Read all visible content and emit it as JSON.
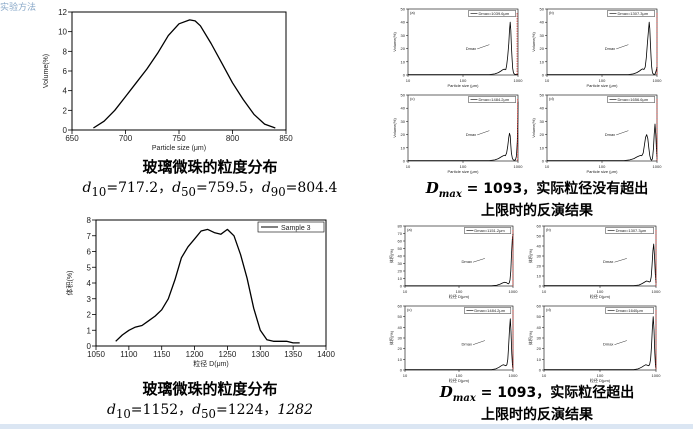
{
  "page": {
    "corner_text": "实验方法",
    "left_top_caption": {
      "title": "玻璃微珠的粒度分布",
      "d10": "717.2",
      "d50": "759.5",
      "d90": "804.4"
    },
    "left_bottom_caption": {
      "title": "玻璃微珠的粒度分布",
      "d10": "1152",
      "d50": "1224",
      "d90_value": "1282"
    },
    "right_top_caption": {
      "dmax_label": "D",
      "dmax_sub": "max",
      "eq": "= 1093，实际粒径没有超出",
      "line2": "上限时的反演结果"
    },
    "right_bottom_caption": {
      "dmax_label": "D",
      "dmax_sub": "max",
      "eq": "= 1093，实际粒径超出",
      "line2": "上限时的反演结果"
    },
    "colors": {
      "curve": "#000000",
      "red": "#e8302a",
      "bar": "#dbe6f3"
    }
  },
  "chart_data": [
    {
      "type": "line",
      "id": "chart1",
      "xlabel": "Particle size (μm)",
      "ylabel": "Volume(%)",
      "xlim": [
        650,
        850
      ],
      "ylim": [
        0,
        12
      ],
      "xticks": [
        650,
        700,
        750,
        800,
        850
      ],
      "yticks": [
        0,
        2,
        4,
        6,
        8,
        10,
        12
      ],
      "series": [
        {
          "x": [
            670,
            680,
            690,
            700,
            710,
            720,
            730,
            740,
            750,
            760,
            765,
            770,
            780,
            790,
            800,
            810,
            820,
            830,
            840
          ],
          "values": [
            0.2,
            0.9,
            2.0,
            3.4,
            4.8,
            6.2,
            7.8,
            9.6,
            10.8,
            11.2,
            11.1,
            10.6,
            8.8,
            6.8,
            4.8,
            3.1,
            1.6,
            0.6,
            0.2
          ]
        }
      ]
    },
    {
      "type": "line",
      "id": "chart2",
      "xlabel": "粒径 D(μm)",
      "ylabel": "体积(%)",
      "xlim": [
        1050,
        1400
      ],
      "ylim": [
        0,
        8
      ],
      "xticks": [
        1050,
        1100,
        1150,
        1200,
        1250,
        1300,
        1350,
        1400
      ],
      "yticks": [
        0,
        1,
        2,
        3,
        4,
        5,
        6,
        7,
        8
      ],
      "legend": "Sample 3",
      "series": [
        {
          "name": "Sample 3",
          "x": [
            1080,
            1090,
            1100,
            1110,
            1120,
            1130,
            1140,
            1150,
            1160,
            1170,
            1180,
            1190,
            1200,
            1210,
            1220,
            1230,
            1240,
            1250,
            1260,
            1270,
            1280,
            1290,
            1300,
            1310,
            1320,
            1330,
            1340,
            1350,
            1360
          ],
          "values": [
            0.3,
            0.7,
            1.0,
            1.2,
            1.3,
            1.6,
            1.9,
            2.3,
            3.0,
            4.2,
            5.6,
            6.3,
            6.8,
            7.3,
            7.4,
            7.2,
            7.1,
            7.4,
            7.0,
            5.8,
            4.3,
            2.4,
            1.0,
            0.4,
            0.3,
            0.3,
            0.3,
            0.2,
            0.2
          ]
        }
      ]
    },
    {
      "type": "line",
      "id": "g1",
      "panel": "(a)",
      "legend": "Dmax=1039.6μm",
      "xlabel": "Particle size (μm)",
      "ylabel": "Volume(%)",
      "xscale": "log",
      "xlim": [
        10,
        1000
      ],
      "ylim": [
        0,
        50
      ],
      "xticks": [
        10,
        100,
        1000
      ],
      "yticks": [
        0,
        10,
        20,
        30,
        40,
        50
      ],
      "annotation": "Dmax",
      "series": [
        {
          "x": [
            10,
            300,
            380,
            440,
            490,
            530,
            560,
            580,
            600,
            620,
            650,
            680,
            700,
            720,
            740,
            760,
            780,
            800,
            830,
            870,
            1000
          ],
          "values": [
            0.3,
            0.3,
            0.8,
            1.8,
            3.0,
            4.0,
            4.5,
            4.0,
            4.2,
            7,
            14,
            24,
            34,
            40,
            34,
            22,
            12,
            5,
            1.5,
            0.5,
            0.3
          ]
        }
      ],
      "red_line_x": 960
    },
    {
      "type": "line",
      "id": "g2",
      "panel": "(b)",
      "legend": "Dmax=1307.3μm",
      "xlabel": "Particle size (μm)",
      "ylabel": "Volume(%)",
      "xscale": "log",
      "xlim": [
        10,
        1000
      ],
      "ylim": [
        0,
        50
      ],
      "xticks": [
        10,
        100,
        1000
      ],
      "yticks": [
        0,
        10,
        20,
        30,
        40,
        50
      ],
      "annotation": "Dmax",
      "series": [
        {
          "x": [
            10,
            300,
            370,
            430,
            480,
            520,
            550,
            580,
            610,
            640,
            670,
            700,
            720,
            740,
            760,
            780,
            800,
            830,
            870,
            920,
            960,
            1000
          ],
          "values": [
            0.3,
            0.3,
            0.8,
            1.8,
            3.0,
            4.2,
            4.6,
            4.2,
            6,
            13,
            24,
            34,
            40,
            35,
            24,
            13,
            6,
            1.5,
            0.5,
            0.5,
            2.8,
            6
          ]
        }
      ],
      "red_line_x": 1000
    },
    {
      "type": "line",
      "id": "g3",
      "panel": "(c)",
      "legend": "Dmax=1484.2μm",
      "xlabel": "Particle size (μm)",
      "ylabel": "Volume(%)",
      "xscale": "log",
      "xlim": [
        10,
        1000
      ],
      "ylim": [
        0,
        50
      ],
      "xticks": [
        10,
        100,
        1000
      ],
      "yticks": [
        0,
        10,
        20,
        30,
        40,
        50
      ],
      "annotation": "Dmax",
      "series": [
        {
          "x": [
            10,
            300,
            380,
            440,
            490,
            530,
            560,
            590,
            620,
            650,
            680,
            700,
            720,
            740,
            760,
            790,
            820,
            860,
            900,
            940,
            970,
            990,
            1000
          ],
          "values": [
            0.3,
            0.3,
            0.8,
            1.8,
            3.0,
            3.8,
            4.3,
            4.0,
            6,
            11,
            18,
            21,
            19,
            12,
            6,
            2,
            0.8,
            0.5,
            0.8,
            4,
            15,
            32,
            45
          ]
        }
      ],
      "red_line_x": 985
    },
    {
      "type": "line",
      "id": "g4",
      "panel": "(d)",
      "legend": "Dmax=1656.6μm",
      "xlabel": "Particle size (μm)",
      "ylabel": "Volume(%)",
      "xscale": "log",
      "xlim": [
        10,
        1000
      ],
      "ylim": [
        0,
        50
      ],
      "xticks": [
        10,
        100,
        1000
      ],
      "yticks": [
        0,
        10,
        20,
        30,
        40,
        50
      ],
      "annotation": "Dmax",
      "series": [
        {
          "x": [
            10,
            250,
            320,
            380,
            430,
            470,
            500,
            530,
            560,
            590,
            620,
            650,
            680,
            710,
            740,
            770,
            800,
            830,
            860,
            890,
            920,
            950,
            980,
            1000
          ],
          "values": [
            0.3,
            0.3,
            0.8,
            1.8,
            3.0,
            3.8,
            4.2,
            4.0,
            6,
            12,
            18,
            20,
            17,
            10,
            4,
            1.2,
            0.6,
            2,
            9,
            20,
            28,
            20,
            8,
            2
          ]
        }
      ],
      "red_line_x": 1000
    },
    {
      "type": "line",
      "id": "g5",
      "panel": "(a)",
      "legend": "Dmax=1151.2μm",
      "xlabel": "粒径 D(μm)",
      "ylabel": "体积(%)",
      "xscale": "log",
      "xlim": [
        10,
        1000
      ],
      "ylim": [
        0,
        80
      ],
      "xticks": [
        10,
        100,
        1000
      ],
      "yticks": [
        0,
        10,
        20,
        30,
        40,
        50,
        60,
        70,
        80
      ],
      "annotation": "Dmax",
      "series": [
        {
          "x": [
            10,
            400,
            500,
            580,
            640,
            700,
            750,
            790,
            820,
            850,
            880,
            910,
            940,
            970,
            1000
          ],
          "values": [
            0.3,
            0.3,
            1.0,
            2.5,
            4.0,
            5.0,
            4.5,
            3.5,
            3.0,
            4.0,
            8,
            20,
            42,
            62,
            70
          ]
        }
      ],
      "red_line_x": 995
    },
    {
      "type": "line",
      "id": "g6",
      "panel": "(b)",
      "legend": "Dmax=1307.3μm",
      "xlabel": "粒径 D(μm)",
      "ylabel": "体积(%)",
      "xscale": "log",
      "xlim": [
        10,
        1000
      ],
      "ylim": [
        0,
        60
      ],
      "xticks": [
        10,
        100,
        1000
      ],
      "yticks": [
        0,
        10,
        20,
        30,
        40,
        50,
        60
      ],
      "annotation": "Dmax",
      "series": [
        {
          "x": [
            10,
            400,
            500,
            570,
            630,
            680,
            720,
            760,
            790,
            820,
            850,
            880,
            910,
            940,
            970,
            1000
          ],
          "values": [
            0.3,
            0.3,
            1.0,
            2.5,
            4.0,
            5.0,
            4.6,
            4.0,
            4.5,
            9,
            20,
            35,
            42,
            30,
            12,
            3
          ]
        }
      ],
      "red_line_x": 1000
    },
    {
      "type": "line",
      "id": "g7",
      "panel": "(c)",
      "legend": "Dmax=1484.2μm",
      "xlabel": "粒径 D(μm)",
      "ylabel": "体积(%)",
      "xscale": "log",
      "xlim": [
        10,
        1000
      ],
      "ylim": [
        0,
        60
      ],
      "xticks": [
        10,
        100,
        1000
      ],
      "yticks": [
        0,
        10,
        20,
        30,
        40,
        50,
        60
      ],
      "annotation": "Dmax",
      "series": [
        {
          "x": [
            10,
            400,
            480,
            550,
            610,
            660,
            700,
            740,
            770,
            800,
            830,
            860,
            890,
            920,
            950,
            980,
            1000
          ],
          "values": [
            0.3,
            0.3,
            1.0,
            2.5,
            4.0,
            5.0,
            4.5,
            4.0,
            5,
            10,
            22,
            38,
            48,
            36,
            15,
            4,
            1
          ]
        }
      ],
      "red_line_x": 1000
    },
    {
      "type": "line",
      "id": "g8",
      "panel": "(d)",
      "legend": "Dmax=1640μm",
      "xlabel": "粒径 D(μm)",
      "ylabel": "体积(%)",
      "xscale": "log",
      "xlim": [
        10,
        1000
      ],
      "ylim": [
        0,
        60
      ],
      "xticks": [
        10,
        100,
        1000
      ],
      "yticks": [
        0,
        10,
        20,
        30,
        40,
        50,
        60
      ],
      "annotation": "Dmax",
      "series": [
        {
          "x": [
            10,
            400,
            480,
            550,
            610,
            660,
            700,
            740,
            770,
            800,
            830,
            860,
            890,
            920,
            950,
            980,
            1000
          ],
          "values": [
            0.3,
            0.3,
            1.0,
            2.5,
            4.0,
            5.0,
            4.5,
            4.0,
            5,
            10,
            22,
            38,
            50,
            38,
            16,
            4,
            1
          ]
        }
      ],
      "red_line_x": 1000
    }
  ]
}
